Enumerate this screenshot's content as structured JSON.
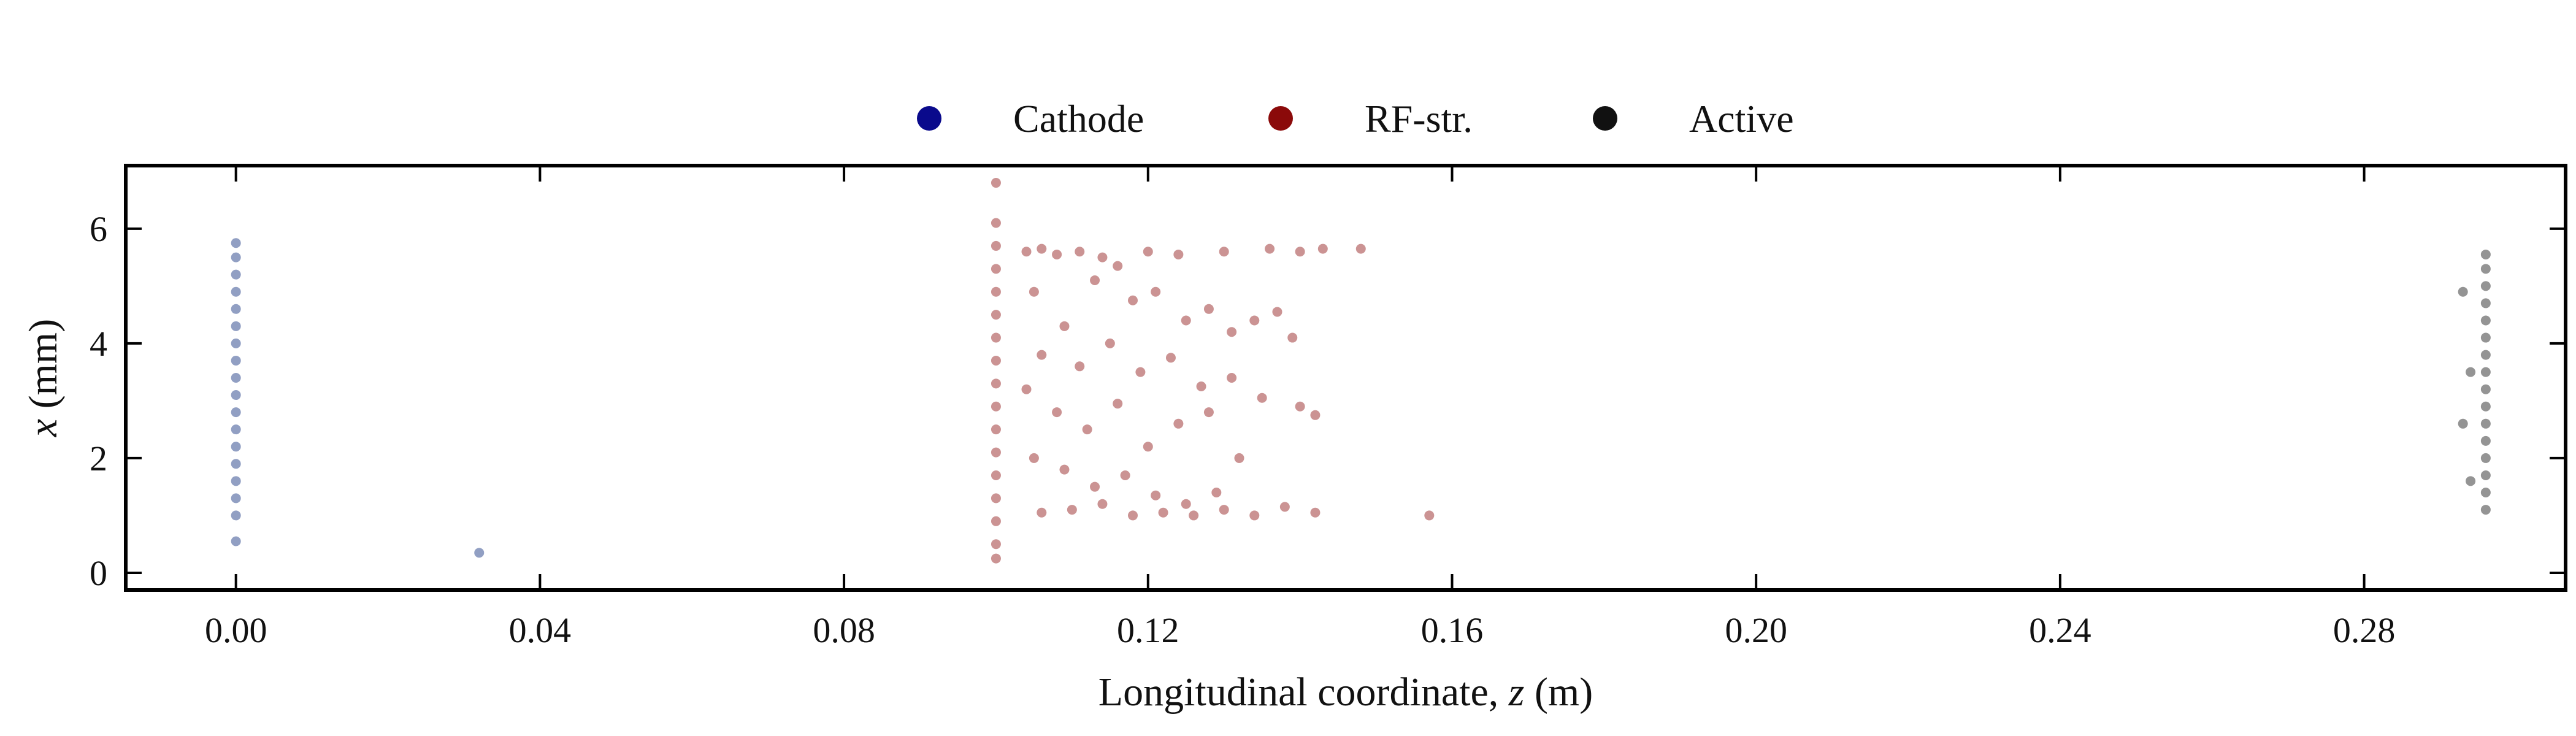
{
  "chart_data": {
    "type": "scatter",
    "title": "",
    "xlabel": "Longitudinal coordinate, ",
    "xlabel_var": "z",
    "xlabel_unit": " (m)",
    "ylabel_var": "x",
    "ylabel_unit": " (mm)",
    "xlim": [
      -0.0145,
      0.3065
    ],
    "ylim": [
      -0.3,
      7.1
    ],
    "x_ticks": [
      0.0,
      0.04,
      0.08,
      0.12,
      0.16,
      0.2,
      0.24,
      0.28
    ],
    "x_tick_labels": [
      "0.00",
      "0.04",
      "0.08",
      "0.12",
      "0.16",
      "0.20",
      "0.24",
      "0.28"
    ],
    "y_ticks": [
      0,
      2,
      4,
      6
    ],
    "y_tick_labels": [
      "0",
      "2",
      "4",
      "6"
    ],
    "legend_position": "top-center",
    "grid": false,
    "series": [
      {
        "name": "Cathode",
        "color": "#0b2a7a",
        "legend_color": "#0a0a8c",
        "points": [
          [
            0.0,
            0.55
          ],
          [
            0.0,
            1.0
          ],
          [
            0.0,
            1.3
          ],
          [
            0.0,
            1.6
          ],
          [
            0.0,
            1.9
          ],
          [
            0.0,
            2.2
          ],
          [
            0.0,
            2.5
          ],
          [
            0.0,
            2.8
          ],
          [
            0.0,
            3.1
          ],
          [
            0.0,
            3.4
          ],
          [
            0.0,
            3.7
          ],
          [
            0.0,
            4.0
          ],
          [
            0.0,
            4.3
          ],
          [
            0.0,
            4.6
          ],
          [
            0.0,
            4.9
          ],
          [
            0.0,
            5.2
          ],
          [
            0.0,
            5.5
          ],
          [
            0.0,
            5.75
          ],
          [
            0.032,
            0.35
          ]
        ]
      },
      {
        "name": "RF-str.",
        "color": "#8b1010",
        "legend_color": "#8b0a0a",
        "points": [
          [
            0.1,
            0.25
          ],
          [
            0.1,
            0.5
          ],
          [
            0.1,
            0.9
          ],
          [
            0.1,
            1.3
          ],
          [
            0.1,
            1.7
          ],
          [
            0.1,
            2.1
          ],
          [
            0.1,
            2.5
          ],
          [
            0.1,
            2.9
          ],
          [
            0.1,
            3.3
          ],
          [
            0.1,
            3.7
          ],
          [
            0.1,
            4.1
          ],
          [
            0.1,
            4.5
          ],
          [
            0.1,
            4.9
          ],
          [
            0.1,
            5.3
          ],
          [
            0.1,
            5.7
          ],
          [
            0.1,
            6.1
          ],
          [
            0.1,
            6.8
          ],
          [
            0.104,
            5.6
          ],
          [
            0.106,
            5.65
          ],
          [
            0.108,
            5.55
          ],
          [
            0.111,
            5.6
          ],
          [
            0.114,
            5.5
          ],
          [
            0.116,
            5.35
          ],
          [
            0.12,
            5.6
          ],
          [
            0.124,
            5.55
          ],
          [
            0.13,
            5.6
          ],
          [
            0.136,
            5.65
          ],
          [
            0.14,
            5.6
          ],
          [
            0.143,
            5.65
          ],
          [
            0.148,
            5.65
          ],
          [
            0.105,
            4.9
          ],
          [
            0.109,
            4.3
          ],
          [
            0.113,
            5.1
          ],
          [
            0.118,
            4.75
          ],
          [
            0.121,
            4.9
          ],
          [
            0.125,
            4.4
          ],
          [
            0.128,
            4.6
          ],
          [
            0.131,
            4.2
          ],
          [
            0.134,
            4.4
          ],
          [
            0.137,
            4.55
          ],
          [
            0.139,
            4.1
          ],
          [
            0.106,
            3.8
          ],
          [
            0.111,
            3.6
          ],
          [
            0.115,
            4.0
          ],
          [
            0.119,
            3.5
          ],
          [
            0.123,
            3.75
          ],
          [
            0.127,
            3.25
          ],
          [
            0.131,
            3.4
          ],
          [
            0.135,
            3.05
          ],
          [
            0.14,
            2.9
          ],
          [
            0.142,
            2.75
          ],
          [
            0.104,
            3.2
          ],
          [
            0.108,
            2.8
          ],
          [
            0.112,
            2.5
          ],
          [
            0.116,
            2.95
          ],
          [
            0.12,
            2.2
          ],
          [
            0.124,
            2.6
          ],
          [
            0.128,
            2.8
          ],
          [
            0.132,
            2.0
          ],
          [
            0.105,
            2.0
          ],
          [
            0.109,
            1.8
          ],
          [
            0.113,
            1.5
          ],
          [
            0.117,
            1.7
          ],
          [
            0.121,
            1.35
          ],
          [
            0.125,
            1.2
          ],
          [
            0.129,
            1.4
          ],
          [
            0.106,
            1.05
          ],
          [
            0.11,
            1.1
          ],
          [
            0.114,
            1.2
          ],
          [
            0.118,
            1.0
          ],
          [
            0.122,
            1.05
          ],
          [
            0.126,
            1.0
          ],
          [
            0.13,
            1.1
          ],
          [
            0.134,
            1.0
          ],
          [
            0.138,
            1.15
          ],
          [
            0.142,
            1.05
          ],
          [
            0.157,
            1.0
          ]
        ]
      },
      {
        "name": "Active",
        "color": "#111111",
        "legend_color": "#111111",
        "points": [
          [
            0.296,
            1.1
          ],
          [
            0.296,
            1.4
          ],
          [
            0.296,
            1.7
          ],
          [
            0.296,
            2.0
          ],
          [
            0.296,
            2.3
          ],
          [
            0.296,
            2.6
          ],
          [
            0.296,
            2.9
          ],
          [
            0.296,
            3.2
          ],
          [
            0.296,
            3.5
          ],
          [
            0.296,
            3.8
          ],
          [
            0.296,
            4.1
          ],
          [
            0.296,
            4.4
          ],
          [
            0.296,
            4.7
          ],
          [
            0.296,
            5.0
          ],
          [
            0.296,
            5.3
          ],
          [
            0.296,
            5.55
          ],
          [
            0.293,
            4.9
          ],
          [
            0.294,
            3.5
          ],
          [
            0.293,
            2.6
          ],
          [
            0.294,
            1.6
          ]
        ]
      }
    ]
  }
}
